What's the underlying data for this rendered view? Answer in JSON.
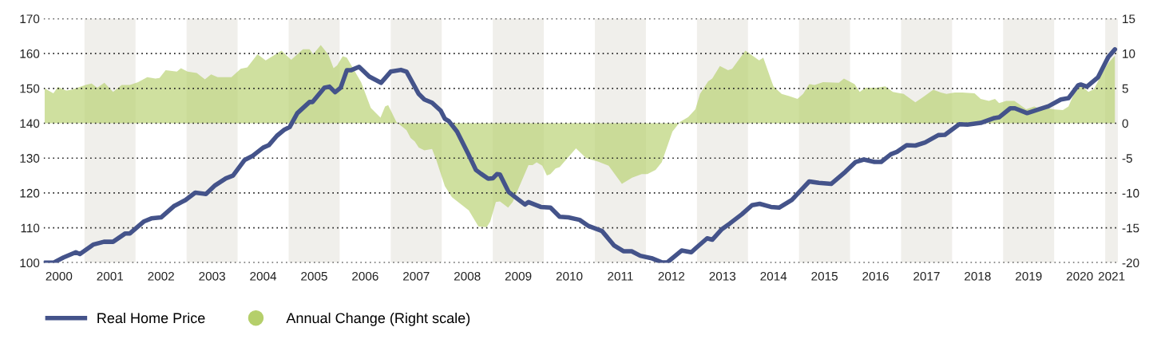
{
  "chart_data": {
    "type": "line",
    "xlim": [
      2000.2,
      2021.25
    ],
    "xticks": [
      {
        "value": 2000.5,
        "label": "2000"
      },
      {
        "value": 2001.5,
        "label": "2001"
      },
      {
        "value": 2002.5,
        "label": "2002"
      },
      {
        "value": 2003.5,
        "label": "2003"
      },
      {
        "value": 2004.5,
        "label": "2004"
      },
      {
        "value": 2005.5,
        "label": "2005"
      },
      {
        "value": 2006.5,
        "label": "2006"
      },
      {
        "value": 2007.5,
        "label": "2007"
      },
      {
        "value": 2008.5,
        "label": "2008"
      },
      {
        "value": 2009.5,
        "label": "2009"
      },
      {
        "value": 2010.5,
        "label": "2010"
      },
      {
        "value": 2011.5,
        "label": "2011"
      },
      {
        "value": 2012.5,
        "label": "2012"
      },
      {
        "value": 2013.5,
        "label": "2013"
      },
      {
        "value": 2014.5,
        "label": "2014"
      },
      {
        "value": 2015.5,
        "label": "2015"
      },
      {
        "value": 2016.5,
        "label": "2016"
      },
      {
        "value": 2017.5,
        "label": "2017"
      },
      {
        "value": 2018.5,
        "label": "2018"
      },
      {
        "value": 2019.5,
        "label": "2019"
      },
      {
        "value": 2020.5,
        "label": "2020"
      },
      {
        "value": 2021.125,
        "label": "2021"
      }
    ],
    "ylim": [
      100,
      170
    ],
    "yticks": [
      100,
      110,
      120,
      130,
      140,
      150,
      160,
      170
    ],
    "y2lim": [
      -20,
      15
    ],
    "y2ticks": [
      -20,
      -15,
      -10,
      -5,
      0,
      5,
      10,
      15
    ],
    "grid": "y",
    "legend": "bottom left",
    "bands": [
      {
        "axis": "x",
        "from": 2001,
        "to": 2002,
        "color": "#f0efeb"
      },
      {
        "axis": "x",
        "from": 2003,
        "to": 2004,
        "color": "#f0efeb"
      },
      {
        "axis": "x",
        "from": 2005,
        "to": 2006,
        "color": "#f0efeb"
      },
      {
        "axis": "x",
        "from": 2007,
        "to": 2008,
        "color": "#f0efeb"
      },
      {
        "axis": "x",
        "from": 2009,
        "to": 2010,
        "color": "#f0efeb"
      },
      {
        "axis": "x",
        "from": 2011,
        "to": 2012,
        "color": "#f0efeb"
      },
      {
        "axis": "x",
        "from": 2013,
        "to": 2014,
        "color": "#f0efeb"
      },
      {
        "axis": "x",
        "from": 2015,
        "to": 2016,
        "color": "#f0efeb"
      },
      {
        "axis": "x",
        "from": 2017,
        "to": 2018,
        "color": "#f0efeb"
      },
      {
        "axis": "x",
        "from": 2019,
        "to": 2020,
        "color": "#f0efeb"
      },
      {
        "axis": "x",
        "from": 2021,
        "to": 2021.25,
        "color": "#f0efeb"
      }
    ],
    "series": [
      {
        "name": "Annual Change (Right scale)",
        "type": "area",
        "axis": "y2",
        "color": "#b5cf6b",
        "x": [
          2000.22,
          2000.39,
          2000.48,
          2000.64,
          2000.75,
          2001.02,
          2001.14,
          2001.25,
          2001.39,
          2001.56,
          2001.73,
          2001.89,
          2002.05,
          2002.23,
          2002.39,
          2002.47,
          2002.59,
          2002.81,
          2002.89,
          2003.02,
          2003.2,
          2003.36,
          2003.48,
          2003.61,
          2003.88,
          2004.06,
          2004.19,
          2004.39,
          2004.55,
          2004.86,
          2005.05,
          2005.28,
          2005.41,
          2005.48,
          2005.63,
          2005.78,
          2005.88,
          2005.95,
          2006.06,
          2006.14,
          2006.42,
          2006.61,
          2006.8,
          2006.89,
          2006.95,
          2007.11,
          2007.31,
          2007.39,
          2007.47,
          2007.55,
          2007.66,
          2007.81,
          2007.89,
          2008.06,
          2008.2,
          2008.53,
          2008.72,
          2008.88,
          2008.95,
          2009.06,
          2009.14,
          2009.3,
          2009.39,
          2009.7,
          2009.78,
          2009.86,
          2009.97,
          2010.06,
          2010.13,
          2010.23,
          2010.31,
          2010.63,
          2010.83,
          2011.06,
          2011.27,
          2011.53,
          2011.73,
          2011.92,
          2012.03,
          2012.19,
          2012.31,
          2012.52,
          2012.67,
          2012.83,
          2012.97,
          2013.06,
          2013.22,
          2013.3,
          2013.45,
          2013.61,
          2013.69,
          2013.95,
          2014.22,
          2014.3,
          2014.45,
          2014.5,
          2014.66,
          2014.81,
          2014.97,
          2015.08,
          2015.2,
          2015.31,
          2015.47,
          2015.78,
          2015.88,
          2016.09,
          2016.19,
          2016.3,
          2016.53,
          2016.69,
          2016.84,
          2017.05,
          2017.28,
          2017.42,
          2017.63,
          2017.78,
          2017.89,
          2018.05,
          2018.2,
          2018.44,
          2018.56,
          2018.72,
          2018.84,
          2018.92,
          2019.06,
          2019.22,
          2019.3,
          2019.45,
          2019.61,
          2019.73,
          2019.84,
          2019.97,
          2020.17,
          2020.28,
          2020.39,
          2020.52,
          2020.67,
          2020.78,
          2020.94,
          2021.06,
          2021.19
        ],
        "values": [
          5.0,
          4.3,
          5.2,
          4.7,
          4.8,
          5.5,
          5.7,
          5.1,
          5.8,
          4.5,
          5.5,
          5.5,
          5.9,
          6.6,
          6.4,
          6.5,
          7.6,
          7.4,
          7.9,
          7.4,
          7.2,
          6.3,
          7.0,
          6.6,
          6.6,
          7.8,
          8.0,
          9.9,
          9.0,
          10.4,
          9.1,
          10.6,
          10.6,
          9.9,
          11.2,
          9.8,
          7.9,
          8.3,
          9.6,
          9.4,
          5.9,
          2.2,
          0.8,
          2.4,
          2.6,
          0.2,
          -1.0,
          -2.1,
          -2.6,
          -3.5,
          -3.9,
          -3.7,
          -5.2,
          -9.0,
          -10.6,
          -12.5,
          -14.8,
          -14.9,
          -14.1,
          -11.3,
          -11.2,
          -12.1,
          -11.3,
          -6.0,
          -6.0,
          -5.6,
          -6.1,
          -7.5,
          -7.3,
          -6.5,
          -6.3,
          -3.6,
          -5.0,
          -5.5,
          -6.1,
          -8.7,
          -7.8,
          -7.3,
          -7.3,
          -6.7,
          -5.6,
          -1.2,
          0.2,
          0.9,
          2.0,
          4.2,
          6.0,
          6.4,
          8.2,
          7.6,
          7.8,
          10.4,
          9.0,
          9.4,
          6.3,
          5.3,
          4.2,
          3.9,
          3.5,
          4.2,
          5.6,
          5.5,
          5.9,
          5.8,
          6.4,
          5.6,
          4.5,
          5.1,
          5.1,
          5.3,
          4.5,
          4.2,
          3.0,
          3.7,
          4.8,
          4.4,
          4.2,
          4.4,
          4.4,
          4.3,
          3.5,
          3.2,
          3.5,
          2.9,
          3.2,
          3.2,
          2.8,
          2.0,
          2.4,
          2.0,
          2.2,
          2.0,
          1.9,
          2.4,
          4.3,
          5.5,
          4.5,
          4.9,
          7.2,
          8.6,
          9.7
        ]
      },
      {
        "name": "Real Home Price",
        "color": "#44538a",
        "line_style": "solid",
        "x": [
          2000.22,
          2000.39,
          2000.59,
          2000.83,
          2000.91,
          2001.17,
          2001.38,
          2001.56,
          2001.8,
          2001.89,
          2002.16,
          2002.31,
          2002.5,
          2002.75,
          2002.98,
          2003.17,
          2003.38,
          2003.56,
          2003.77,
          2003.91,
          2004.14,
          2004.3,
          2004.5,
          2004.61,
          2004.77,
          2004.92,
          2005.02,
          2005.17,
          2005.41,
          2005.47,
          2005.7,
          2005.8,
          2005.91,
          2006.02,
          2006.14,
          2006.22,
          2006.38,
          2006.58,
          2006.81,
          2007.0,
          2007.2,
          2007.31,
          2007.55,
          2007.66,
          2007.81,
          2007.98,
          2008.06,
          2008.14,
          2008.3,
          2008.52,
          2008.67,
          2008.77,
          2008.91,
          2009.0,
          2009.08,
          2009.14,
          2009.31,
          2009.45,
          2009.63,
          2009.7,
          2009.94,
          2010.13,
          2010.31,
          2010.48,
          2010.7,
          2010.88,
          2011.14,
          2011.38,
          2011.56,
          2011.72,
          2011.89,
          2012.11,
          2012.31,
          2012.42,
          2012.7,
          2012.89,
          2012.98,
          2013.2,
          2013.3,
          2013.48,
          2013.64,
          2013.88,
          2014.08,
          2014.23,
          2014.45,
          2014.61,
          2014.86,
          2015.2,
          2015.39,
          2015.63,
          2015.91,
          2016.11,
          2016.27,
          2016.48,
          2016.61,
          2016.8,
          2016.92,
          2017.11,
          2017.28,
          2017.47,
          2017.73,
          2017.86,
          2018.14,
          2018.3,
          2018.56,
          2018.83,
          2018.92,
          2019.14,
          2019.23,
          2019.47,
          2019.66,
          2019.89,
          2020.13,
          2020.28,
          2020.47,
          2020.52,
          2020.64,
          2020.86,
          2021.06,
          2021.19
        ],
        "values": [
          100.0,
          100.0,
          101.5,
          103.0,
          102.5,
          105.2,
          106.0,
          106.0,
          108.4,
          108.4,
          111.8,
          112.7,
          113.0,
          116.2,
          118.0,
          120.1,
          119.7,
          122.2,
          124.2,
          125.0,
          129.5,
          130.7,
          133.0,
          133.7,
          136.4,
          138.2,
          138.9,
          142.9,
          146.1,
          146.1,
          150.2,
          150.5,
          148.9,
          150.2,
          155.2,
          155.2,
          156.2,
          153.4,
          151.6,
          154.8,
          155.3,
          154.8,
          148.4,
          146.8,
          145.9,
          143.6,
          141.3,
          140.6,
          137.6,
          131.2,
          126.6,
          125.5,
          124.1,
          124.2,
          125.4,
          125.3,
          120.3,
          118.7,
          116.7,
          117.4,
          116.0,
          115.8,
          113.2,
          113.0,
          112.3,
          110.5,
          109.1,
          104.9,
          103.3,
          103.3,
          102.0,
          101.3,
          100.1,
          100.1,
          103.5,
          103.0,
          104.2,
          107.0,
          106.6,
          109.5,
          111.2,
          113.9,
          116.5,
          116.9,
          116.0,
          115.8,
          118.0,
          123.3,
          122.9,
          122.6,
          126.1,
          128.9,
          129.6,
          128.9,
          128.9,
          131.1,
          131.8,
          133.7,
          133.6,
          134.5,
          136.6,
          136.7,
          139.7,
          139.6,
          140.1,
          141.5,
          141.7,
          144.3,
          144.3,
          142.9,
          143.8,
          144.9,
          146.8,
          147.2,
          150.9,
          151.1,
          150.5,
          153.2,
          159.0,
          161.2
        ]
      }
    ]
  }
}
